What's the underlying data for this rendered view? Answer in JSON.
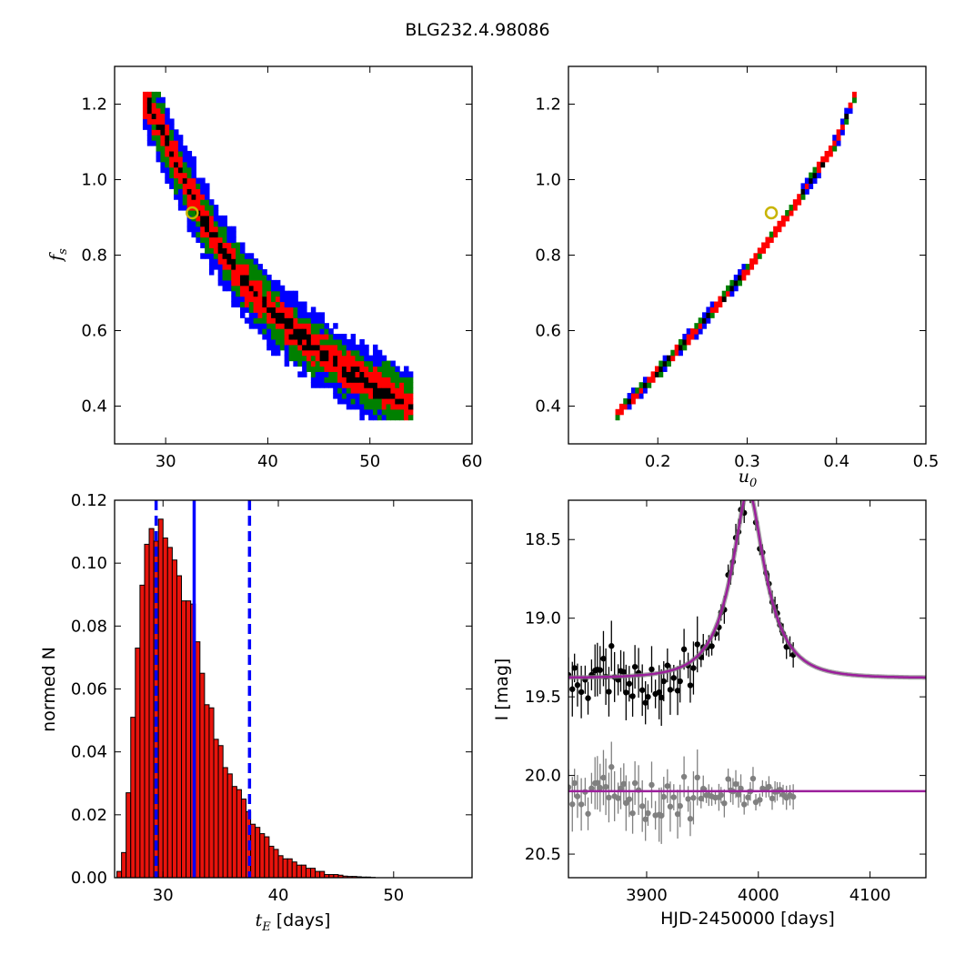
{
  "title": "BLG232.4.98086",
  "chart_data": [
    {
      "type": "scatter",
      "panel": "tE-fs posterior",
      "xlabel": "",
      "ylabel": "f_s",
      "xlim": [
        25,
        60
      ],
      "ylim": [
        0.3,
        1.3
      ],
      "xticks": [
        "30",
        "40",
        "50",
        "60"
      ],
      "yticks": [
        "0.4",
        "0.6",
        "0.8",
        "1.0",
        "1.2"
      ],
      "best_fit": {
        "x": 32.6,
        "y": 0.912
      },
      "band_centerline": {
        "x": [
          28,
          30,
          32,
          34,
          36,
          38,
          40,
          42,
          44,
          46,
          48,
          50,
          52,
          54
        ],
        "y": [
          1.22,
          1.11,
          0.99,
          0.88,
          0.8,
          0.72,
          0.66,
          0.61,
          0.57,
          0.53,
          0.49,
          0.46,
          0.43,
          0.4
        ]
      },
      "levels": [
        {
          "name": "blue",
          "color": "#0000ff",
          "width": 0.095
        },
        {
          "name": "green",
          "color": "#008000",
          "width": 0.065
        },
        {
          "name": "red",
          "color": "#ff0000",
          "width": 0.04
        },
        {
          "name": "black",
          "color": "#000000",
          "width": 0.012
        }
      ]
    },
    {
      "type": "scatter",
      "panel": "u0-fs posterior",
      "xlabel": "u_0",
      "ylabel": "",
      "xlim": [
        0.1,
        0.5
      ],
      "ylim": [
        0.3,
        1.3
      ],
      "xticks": [
        "0.2",
        "0.3",
        "0.4",
        "0.5"
      ],
      "yticks": [
        "0.4",
        "0.6",
        "0.8",
        "1.0",
        "1.2"
      ],
      "best_fit": {
        "x": 0.327,
        "y": 0.912
      },
      "band_centerline": {
        "x": [
          0.155,
          0.2,
          0.25,
          0.3,
          0.35,
          0.4,
          0.42
        ],
        "y": [
          0.38,
          0.49,
          0.62,
          0.76,
          0.92,
          1.1,
          1.22
        ]
      },
      "levels": [
        {
          "name": "blue",
          "color": "#0000ff",
          "width": 0.018
        },
        {
          "name": "green",
          "color": "#008000",
          "width": 0.013
        },
        {
          "name": "red",
          "color": "#ff0000",
          "width": 0.009
        },
        {
          "name": "black",
          "color": "#000000",
          "width": 0.003
        }
      ]
    },
    {
      "type": "bar",
      "panel": "tE histogram",
      "xlabel": "t_E [days]",
      "ylabel": "normed N",
      "xlim": [
        25.8,
        56.8
      ],
      "ylim": [
        0,
        0.12
      ],
      "xticks": [
        "30",
        "40",
        "50"
      ],
      "yticks": [
        "0.00",
        "0.02",
        "0.04",
        "0.06",
        "0.08",
        "0.10",
        "0.12"
      ],
      "bin_start": 26.0,
      "bin_width": 0.4,
      "values": [
        0.002,
        0.008,
        0.027,
        0.051,
        0.073,
        0.093,
        0.106,
        0.111,
        0.107,
        0.114,
        0.108,
        0.105,
        0.101,
        0.096,
        0.088,
        0.088,
        0.087,
        0.075,
        0.065,
        0.055,
        0.054,
        0.044,
        0.042,
        0.035,
        0.033,
        0.029,
        0.028,
        0.025,
        0.021,
        0.017,
        0.016,
        0.014,
        0.013,
        0.01,
        0.009,
        0.007,
        0.006,
        0.006,
        0.005,
        0.004,
        0.004,
        0.003,
        0.003,
        0.002,
        0.002,
        0.001,
        0.001,
        0.001,
        0.0008,
        0.0005,
        0.0004,
        0.0004,
        0.0003,
        0.0002,
        0.0002,
        0.0001
      ],
      "median_line": 32.7,
      "interval_lines": [
        29.4,
        37.5
      ]
    },
    {
      "type": "scatter",
      "panel": "light curve",
      "xlabel": "HJD-2450000 [days]",
      "ylabel": "I [mag]",
      "xlim": [
        3830,
        4150
      ],
      "ylim": [
        20.65,
        18.25
      ],
      "xticks": [
        "3900",
        "4000",
        "4100"
      ],
      "yticks": [
        "18.5",
        "19.0",
        "19.5",
        "20.0",
        "20.5"
      ],
      "model": {
        "t0": 3991,
        "tE": 32.6,
        "u0": 0.327,
        "baseline_mag": 19.38,
        "residual_baseline": 20.1
      },
      "series": [
        {
          "name": "",
          "color": "#000000",
          "role": "data"
        },
        {
          "name": "",
          "color": "#808080",
          "role": "residuals"
        },
        {
          "name": "",
          "color": "#9b1f9b",
          "role": "model"
        }
      ],
      "date_range": [
        3830,
        4032
      ]
    }
  ]
}
